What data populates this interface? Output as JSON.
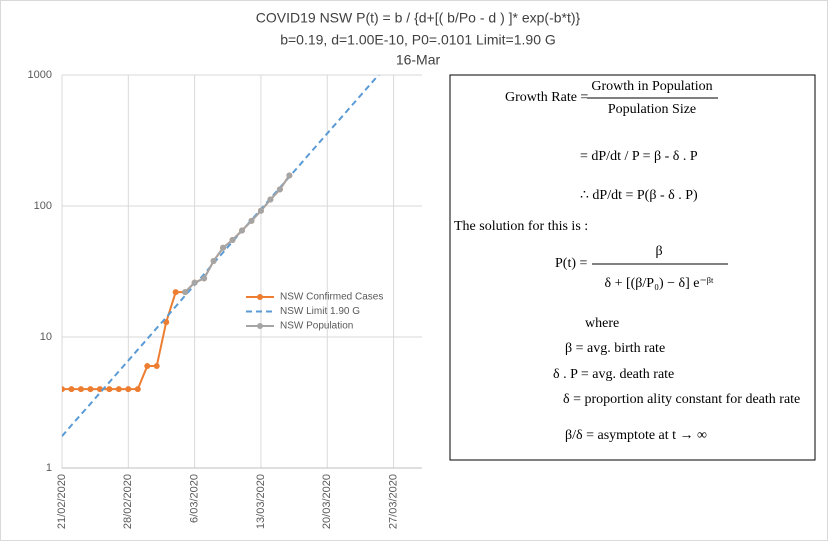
{
  "chart_data": {
    "type": "line",
    "title": "COVID19 NSW P(t) = b / {d+[( b/Po - d ) ]* exp(-b*t)}",
    "subtitle": "b=0.19, d=1.00E-10, P0=.0101 Limit=1.90 G",
    "annotation": "16-Mar",
    "log_y": true,
    "grid": true,
    "legend": "center",
    "ylim": [
      1,
      1000
    ],
    "yticks": [
      1,
      10,
      100,
      1000
    ],
    "xlim": [
      "2020-02-21",
      "2020-03-30"
    ],
    "xticks": [
      {
        "value": "2020-02-21",
        "label": "21/02/2020"
      },
      {
        "value": "2020-02-28",
        "label": "28/02/2020"
      },
      {
        "value": "2020-03-06",
        "label": "6/03/2020"
      },
      {
        "value": "2020-03-13",
        "label": "13/03/2020"
      },
      {
        "value": "2020-03-20",
        "label": "20/03/2020"
      },
      {
        "value": "2020-03-27",
        "label": "27/03/2020"
      }
    ],
    "series": [
      {
        "name": "NSW Confirmed Cases",
        "color": "#ed7d31",
        "style": "solid",
        "markers": true,
        "x": [
          "2020-02-21",
          "2020-02-22",
          "2020-02-23",
          "2020-02-24",
          "2020-02-25",
          "2020-02-26",
          "2020-02-27",
          "2020-02-28",
          "2020-02-29",
          "2020-03-01",
          "2020-03-02",
          "2020-03-03",
          "2020-03-04",
          "2020-03-05",
          "2020-03-06",
          "2020-03-07",
          "2020-03-08",
          "2020-03-09",
          "2020-03-10",
          "2020-03-11",
          "2020-03-12",
          "2020-03-13",
          "2020-03-14",
          "2020-03-15",
          "2020-03-16"
        ],
        "values": [
          4,
          4,
          4,
          4,
          4,
          4,
          4,
          4,
          4,
          6,
          6,
          13,
          22,
          22,
          26,
          28,
          38,
          48,
          55,
          65,
          77,
          92,
          112,
          134,
          171
        ]
      },
      {
        "name": "NSW Limit 1.90 G",
        "color": "#5b9bd5",
        "style": "dashed",
        "markers": false,
        "x": [
          "2020-02-21",
          "2020-02-22",
          "2020-02-23",
          "2020-02-24",
          "2020-02-25",
          "2020-02-26",
          "2020-02-27",
          "2020-02-28",
          "2020-02-29",
          "2020-03-01",
          "2020-03-02",
          "2020-03-03",
          "2020-03-04",
          "2020-03-05",
          "2020-03-06",
          "2020-03-07",
          "2020-03-08",
          "2020-03-09",
          "2020-03-10",
          "2020-03-11",
          "2020-03-12",
          "2020-03-13",
          "2020-03-14",
          "2020-03-15",
          "2020-03-16",
          "2020-03-17",
          "2020-03-18",
          "2020-03-19",
          "2020-03-20",
          "2020-03-21",
          "2020-03-22",
          "2020-03-23",
          "2020-03-24",
          "2020-03-25",
          "2020-03-26"
        ],
        "values": [
          1.75,
          2.12,
          2.56,
          3.09,
          3.74,
          4.52,
          5.47,
          6.61,
          8.0,
          9.67,
          11.7,
          14.1,
          17.1,
          20.7,
          25.0,
          30.2,
          36.6,
          44.2,
          53.5,
          64.6,
          78.2,
          94.5,
          114,
          138,
          167,
          202,
          245,
          296,
          358,
          433,
          523,
          633,
          765,
          925,
          1119
        ]
      },
      {
        "name": "NSW Population",
        "color": "#a5a5a5",
        "style": "solid",
        "markers": true,
        "x": [
          "2020-03-05",
          "2020-03-06",
          "2020-03-07",
          "2020-03-08",
          "2020-03-09",
          "2020-03-10",
          "2020-03-11",
          "2020-03-12",
          "2020-03-13",
          "2020-03-14",
          "2020-03-15",
          "2020-03-16"
        ],
        "values": [
          22,
          26,
          28,
          38,
          48,
          55,
          65,
          77,
          92,
          112,
          134,
          171
        ]
      }
    ]
  },
  "equation_panel": {
    "growth_rate": "Growth Rate =",
    "growth_num": "Growth  in Population",
    "growth_den": "Population Size",
    "line2": "=  dP/dt  / P  = β  -  δ . P",
    "line3": "∴  dP/dt  =  P(β - δ . P)",
    "solution": "The solution for this is :",
    "pt_lhs": "P(t) =",
    "pt_num": "β",
    "pt_den": "δ + [(β/P₀) − δ] e⁻ᵝᵗ",
    "where": "where",
    "def1": "β = avg. birth rate",
    "def2": "δ . P = avg. death rate",
    "def3": "δ = proportion ality constant  for death rate",
    "def4": "β/δ = asymptote at t → ∞"
  }
}
